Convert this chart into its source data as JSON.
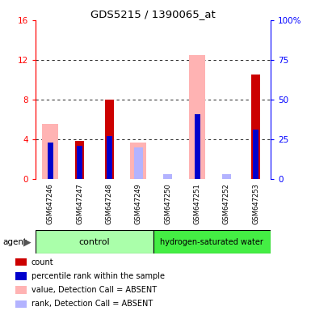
{
  "title": "GDS5215 / 1390065_at",
  "samples": [
    "GSM647246",
    "GSM647247",
    "GSM647248",
    "GSM647249",
    "GSM647250",
    "GSM647251",
    "GSM647252",
    "GSM647253"
  ],
  "left_yticks": [
    0,
    4,
    8,
    12,
    16
  ],
  "left_ytick_labels": [
    "0",
    "4",
    "8",
    "12",
    "16"
  ],
  "right_yticks": [
    0,
    25,
    50,
    75,
    100
  ],
  "right_ytick_labels": [
    "0",
    "25",
    "50",
    "75",
    "100%"
  ],
  "ylim_left": [
    0,
    16
  ],
  "ylim_right": [
    0,
    100
  ],
  "red_count": [
    0,
    3.8,
    8.0,
    0,
    0,
    0,
    0,
    10.5
  ],
  "blue_rank_pct": [
    23,
    21,
    27,
    0,
    0,
    41,
    0,
    31
  ],
  "pink_value_absent": [
    5.5,
    0,
    0,
    3.7,
    0,
    12.5,
    0,
    0
  ],
  "lightblue_rank_absent_pct": [
    0,
    0,
    0,
    20,
    3,
    0,
    3,
    0
  ],
  "color_red": "#cc0000",
  "color_blue": "#0000cc",
  "color_pink": "#ffb3b3",
  "color_lightblue": "#b3b3ff",
  "control_color": "#aaffaa",
  "hsw_color": "#44ee44",
  "gray_bg": "#c8c8c8",
  "legend_items": [
    {
      "color": "#cc0000",
      "label": "count"
    },
    {
      "color": "#0000cc",
      "label": "percentile rank within the sample"
    },
    {
      "color": "#ffb3b3",
      "label": "value, Detection Call = ABSENT"
    },
    {
      "color": "#b3b3ff",
      "label": "rank, Detection Call = ABSENT"
    }
  ]
}
